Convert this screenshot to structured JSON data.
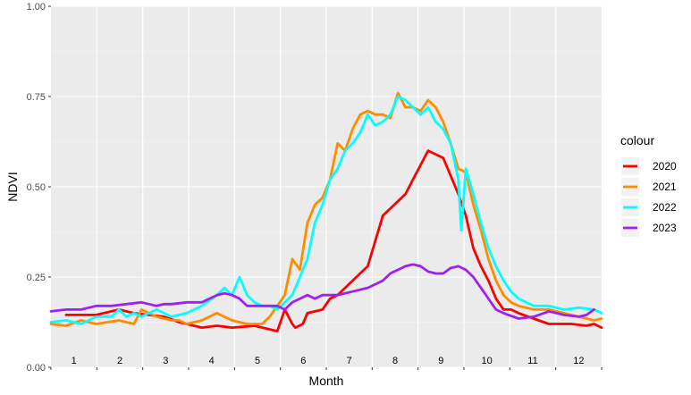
{
  "chart_data": {
    "type": "line",
    "xlabel": "Month",
    "ylabel": "NDVI",
    "xlim": [
      0,
      365
    ],
    "ylim": [
      0,
      1
    ],
    "yticks": [
      0,
      0.25,
      0.5,
      0.75,
      1
    ],
    "ytick_labels": [
      "0.00",
      "0.25",
      "0.50",
      "0.75",
      "1.00"
    ],
    "month_labels": [
      "1",
      "2",
      "3",
      "4",
      "5",
      "6",
      "7",
      "8",
      "9",
      "10",
      "11",
      "12"
    ],
    "grid": true,
    "legend_title": "colour",
    "legend_position": "right",
    "series": [
      {
        "name": "2020",
        "color": "#ff0000",
        "x": [
          10,
          30,
          45,
          55,
          75,
          85,
          90,
          100,
          110,
          120,
          135,
          150,
          155,
          160,
          162,
          167,
          170,
          180,
          185,
          190,
          200,
          210,
          215,
          220,
          225,
          230,
          235,
          240,
          250,
          260,
          270,
          275,
          280,
          285,
          290,
          295,
          300,
          305,
          310,
          320,
          330,
          345,
          355,
          360,
          365
        ],
        "y": [
          0.145,
          0.145,
          0.16,
          0.15,
          0.14,
          0.125,
          0.12,
          0.11,
          0.115,
          0.11,
          0.115,
          0.1,
          0.16,
          0.12,
          0.11,
          0.12,
          0.15,
          0.16,
          0.19,
          0.2,
          0.24,
          0.28,
          0.35,
          0.42,
          0.44,
          0.46,
          0.48,
          0.52,
          0.6,
          0.58,
          0.48,
          0.42,
          0.33,
          0.28,
          0.24,
          0.19,
          0.16,
          0.16,
          0.15,
          0.135,
          0.12,
          0.12,
          0.115,
          0.12,
          0.11
        ]
      },
      {
        "name": "2021",
        "color": "#ff8c00",
        "x": [
          0,
          10,
          20,
          30,
          45,
          55,
          60,
          70,
          80,
          85,
          90,
          100,
          110,
          120,
          130,
          140,
          145,
          150,
          155,
          160,
          165,
          170,
          175,
          180,
          185,
          190,
          195,
          200,
          205,
          210,
          215,
          220,
          225,
          230,
          235,
          240,
          245,
          250,
          255,
          260,
          265,
          270,
          275,
          280,
          285,
          290,
          295,
          300,
          305,
          310,
          320,
          330,
          340,
          350,
          360,
          365
        ],
        "y": [
          0.12,
          0.115,
          0.13,
          0.12,
          0.13,
          0.12,
          0.16,
          0.14,
          0.13,
          0.13,
          0.12,
          0.13,
          0.15,
          0.13,
          0.12,
          0.12,
          0.14,
          0.17,
          0.2,
          0.3,
          0.27,
          0.4,
          0.45,
          0.47,
          0.52,
          0.62,
          0.6,
          0.66,
          0.7,
          0.71,
          0.7,
          0.7,
          0.69,
          0.76,
          0.72,
          0.72,
          0.71,
          0.74,
          0.72,
          0.68,
          0.62,
          0.55,
          0.54,
          0.45,
          0.38,
          0.3,
          0.24,
          0.2,
          0.18,
          0.17,
          0.16,
          0.16,
          0.15,
          0.14,
          0.13,
          0.135
        ]
      },
      {
        "name": "2022",
        "color": "#00ffff",
        "x": [
          0,
          10,
          20,
          30,
          40,
          45,
          50,
          55,
          60,
          70,
          80,
          90,
          100,
          110,
          115,
          120,
          125,
          130,
          135,
          140,
          145,
          150,
          155,
          160,
          165,
          170,
          175,
          180,
          185,
          190,
          195,
          200,
          205,
          210,
          215,
          220,
          225,
          230,
          235,
          240,
          245,
          250,
          255,
          260,
          265,
          270,
          272,
          275,
          280,
          285,
          290,
          295,
          300,
          305,
          310,
          320,
          330,
          340,
          350,
          360,
          365
        ],
        "y": [
          0.125,
          0.13,
          0.12,
          0.14,
          0.14,
          0.16,
          0.14,
          0.15,
          0.14,
          0.16,
          0.14,
          0.15,
          0.17,
          0.2,
          0.22,
          0.2,
          0.25,
          0.2,
          0.18,
          0.17,
          0.17,
          0.16,
          0.18,
          0.2,
          0.25,
          0.3,
          0.4,
          0.45,
          0.52,
          0.55,
          0.6,
          0.62,
          0.65,
          0.7,
          0.67,
          0.68,
          0.7,
          0.75,
          0.74,
          0.72,
          0.7,
          0.72,
          0.68,
          0.66,
          0.62,
          0.52,
          0.38,
          0.55,
          0.48,
          0.4,
          0.33,
          0.28,
          0.24,
          0.21,
          0.19,
          0.17,
          0.17,
          0.16,
          0.165,
          0.16,
          0.15
        ]
      },
      {
        "name": "2023",
        "color": "#a020f0",
        "x": [
          0,
          10,
          20,
          30,
          40,
          50,
          60,
          70,
          75,
          80,
          90,
          100,
          110,
          115,
          120,
          125,
          130,
          140,
          150,
          155,
          160,
          165,
          170,
          175,
          180,
          190,
          200,
          210,
          220,
          225,
          230,
          235,
          240,
          245,
          250,
          255,
          260,
          265,
          270,
          275,
          280,
          285,
          290,
          295,
          300,
          310,
          320,
          330,
          340,
          350,
          355,
          360
        ],
        "y": [
          0.155,
          0.16,
          0.16,
          0.17,
          0.17,
          0.175,
          0.18,
          0.17,
          0.175,
          0.175,
          0.18,
          0.18,
          0.2,
          0.205,
          0.2,
          0.19,
          0.17,
          0.17,
          0.17,
          0.16,
          0.18,
          0.19,
          0.2,
          0.19,
          0.2,
          0.2,
          0.21,
          0.22,
          0.24,
          0.26,
          0.27,
          0.28,
          0.285,
          0.28,
          0.265,
          0.26,
          0.26,
          0.275,
          0.28,
          0.27,
          0.25,
          0.22,
          0.19,
          0.16,
          0.15,
          0.135,
          0.14,
          0.155,
          0.145,
          0.14,
          0.145,
          0.16
        ]
      }
    ]
  }
}
